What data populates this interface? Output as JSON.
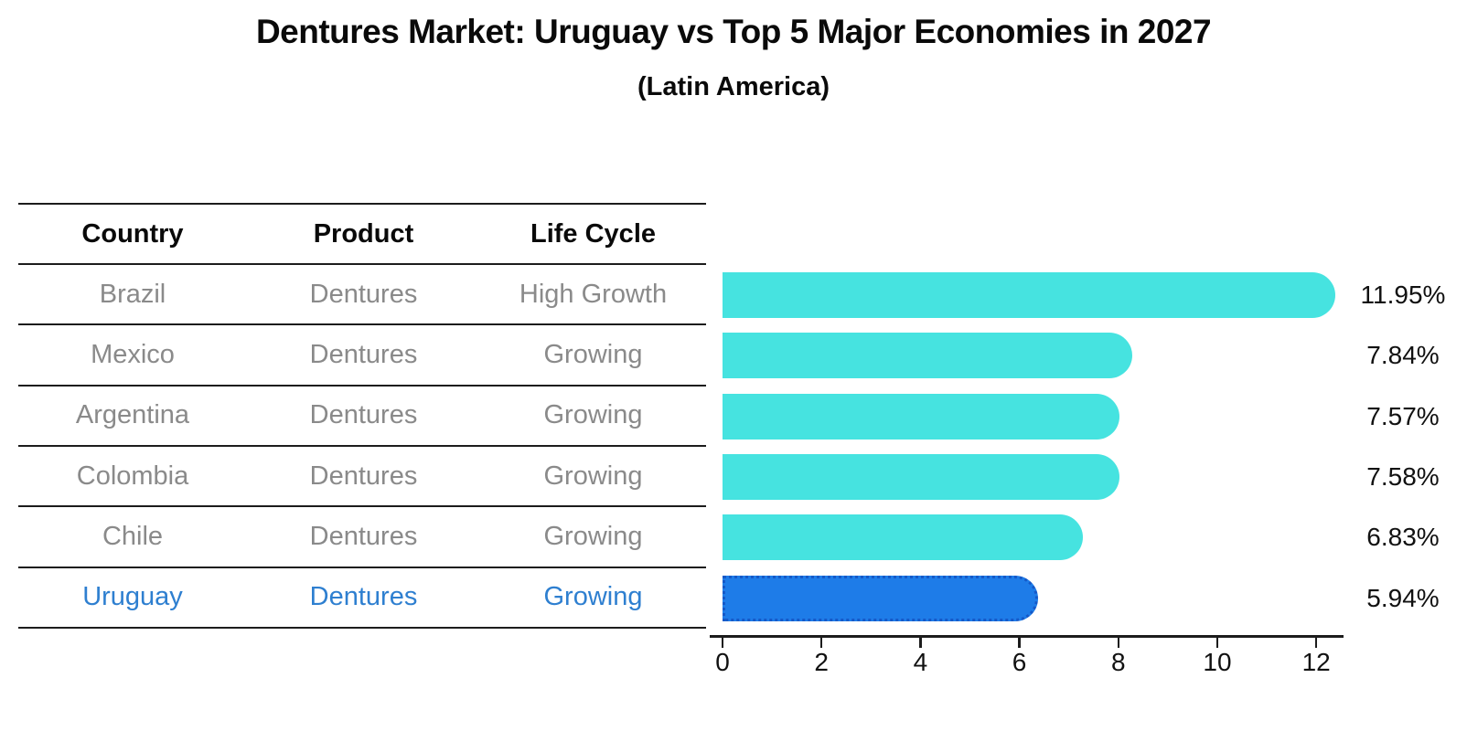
{
  "title": "Dentures Market: Uruguay vs Top 5 Major Economies in 2027",
  "subtitle": "(Latin America)",
  "table": {
    "headers": [
      "Country",
      "Product",
      "Life Cycle"
    ],
    "rows": [
      {
        "country": "Brazil",
        "product": "Dentures",
        "life_cycle": "High Growth",
        "highlight": false
      },
      {
        "country": "Mexico",
        "product": "Dentures",
        "life_cycle": "Growing",
        "highlight": false
      },
      {
        "country": "Argentina",
        "product": "Dentures",
        "life_cycle": "Growing",
        "highlight": false
      },
      {
        "country": "Colombia",
        "product": "Dentures",
        "life_cycle": "Growing",
        "highlight": false
      },
      {
        "country": "Chile",
        "product": "Dentures",
        "life_cycle": "Growing",
        "highlight": false
      },
      {
        "country": "Uruguay",
        "product": "Dentures",
        "life_cycle": "Growing",
        "highlight": true
      }
    ]
  },
  "chart_data": {
    "type": "bar",
    "orientation": "horizontal",
    "title": "Dentures Market: Uruguay vs Top 5 Major Economies in 2027",
    "subtitle": "(Latin America)",
    "categories": [
      "Brazil",
      "Mexico",
      "Argentina",
      "Colombia",
      "Chile",
      "Uruguay"
    ],
    "values": [
      11.95,
      7.84,
      7.57,
      7.58,
      6.83,
      5.94
    ],
    "value_labels": [
      "11.95%",
      "7.84%",
      "7.57%",
      "7.58%",
      "6.83%",
      "5.94%"
    ],
    "xlabel": "",
    "ylabel": "",
    "xlim": [
      0,
      12.6
    ],
    "x_ticks": [
      0,
      2,
      4,
      6,
      8,
      10,
      12
    ],
    "grid": false,
    "legend": "none",
    "highlight_category": "Uruguay",
    "colors": {
      "bar": "#46e3e0",
      "highlight_bar": "#1e7ce8",
      "highlight_border": "#1559c8",
      "highlight_text": "#2e7fd0",
      "row_text": "#8a8a8a",
      "header_text": "#0a0a0a",
      "value_text": "#111111",
      "axis": "#1c1c1c"
    }
  }
}
